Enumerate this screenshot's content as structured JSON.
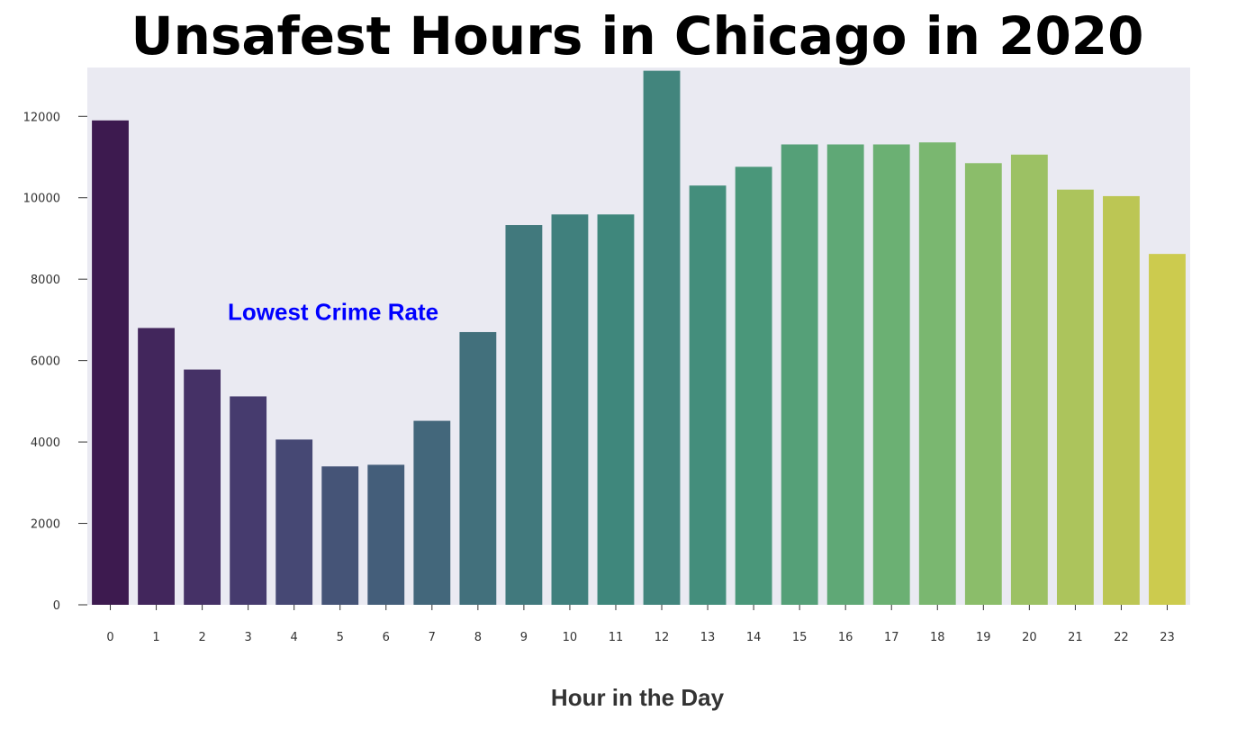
{
  "chart_data": {
    "type": "bar",
    "title": "Unsafest Hours in Chicago in 2020",
    "xlabel": "Hour in the Day",
    "ylabel": "",
    "categories": [
      "0",
      "1",
      "2",
      "3",
      "4",
      "5",
      "6",
      "7",
      "8",
      "9",
      "10",
      "11",
      "12",
      "13",
      "14",
      "15",
      "16",
      "17",
      "18",
      "19",
      "20",
      "21",
      "22",
      "23"
    ],
    "values": [
      11900,
      6800,
      5780,
      5120,
      4060,
      3400,
      3440,
      4520,
      6700,
      9330,
      9590,
      9590,
      13120,
      10300,
      10760,
      11310,
      11310,
      11310,
      11360,
      10850,
      11060,
      10200,
      10040,
      8620
    ],
    "ylim": [
      0,
      13200
    ],
    "yticks": [
      0,
      2000,
      4000,
      6000,
      8000,
      10000,
      12000
    ],
    "grid": false,
    "background_color": "#eaeaf2",
    "palette": [
      "#3d1a4f",
      "#42265c",
      "#453166",
      "#463b6e",
      "#464874",
      "#455477",
      "#445e7a",
      "#43677b",
      "#42707c",
      "#41797d",
      "#40807d",
      "#3f877c",
      "#42857d",
      "#448e7c",
      "#4a977a",
      "#55a078",
      "#5fa876",
      "#6bb073",
      "#7ab770",
      "#8bbd6a",
      "#9cc164",
      "#acc45c",
      "#bcc654",
      "#cccb4e"
    ],
    "annotation": {
      "text": "Lowest Crime Rate",
      "x": 4.85,
      "y": 7200,
      "color": "#0000ff"
    }
  }
}
